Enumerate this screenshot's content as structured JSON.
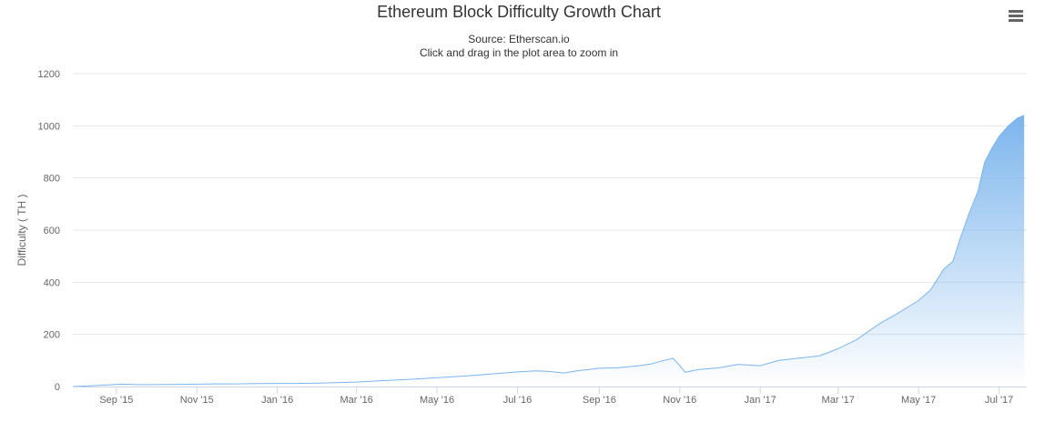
{
  "header": {
    "title": "Ethereum Block Difficulty Growth Chart",
    "subtitle_source": "Source: Etherscan.io",
    "subtitle_hint": "Click and drag in the plot area to zoom in",
    "menu_icon": "hamburger-menu-icon"
  },
  "chart_data": {
    "type": "area",
    "title": "Ethereum Block Difficulty Growth Chart",
    "subtitle": "Source: Etherscan.io",
    "xlabel": "",
    "ylabel": "Difficulty ( TH )",
    "ylim": [
      0,
      1200
    ],
    "yticks": [
      0,
      200,
      400,
      600,
      800,
      1000,
      1200
    ],
    "xlim": [
      "2015-07-30",
      "2017-07-22"
    ],
    "xticks": [
      {
        "date": "2015-09-01",
        "label": "Sep '15"
      },
      {
        "date": "2015-11-01",
        "label": "Nov '15"
      },
      {
        "date": "2016-01-01",
        "label": "Jan '16"
      },
      {
        "date": "2016-03-01",
        "label": "Mar '16"
      },
      {
        "date": "2016-05-01",
        "label": "May '16"
      },
      {
        "date": "2016-07-01",
        "label": "Jul '16"
      },
      {
        "date": "2016-09-01",
        "label": "Sep '16"
      },
      {
        "date": "2016-11-01",
        "label": "Nov '16"
      },
      {
        "date": "2017-01-01",
        "label": "Jan '17"
      },
      {
        "date": "2017-03-01",
        "label": "Mar '17"
      },
      {
        "date": "2017-05-01",
        "label": "May '17"
      },
      {
        "date": "2017-07-01",
        "label": "Jul '17"
      }
    ],
    "grid": true,
    "legend": "none",
    "series": [
      {
        "color": "#7cb5ec",
        "points": [
          [
            "2015-07-30",
            0.1
          ],
          [
            "2015-08-10",
            2
          ],
          [
            "2015-08-25",
            6
          ],
          [
            "2015-09-05",
            9
          ],
          [
            "2015-09-20",
            7
          ],
          [
            "2015-10-05",
            8
          ],
          [
            "2015-10-20",
            8.5
          ],
          [
            "2015-11-01",
            9
          ],
          [
            "2015-11-15",
            10
          ],
          [
            "2015-12-01",
            10
          ],
          [
            "2015-12-15",
            11
          ],
          [
            "2016-01-01",
            12
          ],
          [
            "2016-01-15",
            12
          ],
          [
            "2016-02-01",
            13
          ],
          [
            "2016-02-15",
            15
          ],
          [
            "2016-03-01",
            17
          ],
          [
            "2016-03-15",
            21
          ],
          [
            "2016-04-01",
            25
          ],
          [
            "2016-04-15",
            29
          ],
          [
            "2016-05-01",
            34
          ],
          [
            "2016-05-15",
            38
          ],
          [
            "2016-06-01",
            44
          ],
          [
            "2016-06-15",
            50
          ],
          [
            "2016-07-01",
            56
          ],
          [
            "2016-07-15",
            60
          ],
          [
            "2016-07-25",
            58
          ],
          [
            "2016-08-05",
            52
          ],
          [
            "2016-08-15",
            60
          ],
          [
            "2016-09-01",
            70
          ],
          [
            "2016-09-15",
            72
          ],
          [
            "2016-10-01",
            80
          ],
          [
            "2016-10-10",
            86
          ],
          [
            "2016-10-20",
            100
          ],
          [
            "2016-10-27",
            108
          ],
          [
            "2016-11-01",
            80
          ],
          [
            "2016-11-05",
            55
          ],
          [
            "2016-11-15",
            65
          ],
          [
            "2016-12-01",
            72
          ],
          [
            "2016-12-15",
            85
          ],
          [
            "2017-01-01",
            80
          ],
          [
            "2017-01-15",
            100
          ],
          [
            "2017-02-01",
            110
          ],
          [
            "2017-02-15",
            118
          ],
          [
            "2017-03-01",
            145
          ],
          [
            "2017-03-15",
            180
          ],
          [
            "2017-04-01",
            240
          ],
          [
            "2017-04-15",
            280
          ],
          [
            "2017-05-01",
            330
          ],
          [
            "2017-05-10",
            370
          ],
          [
            "2017-05-20",
            450
          ],
          [
            "2017-05-27",
            480
          ],
          [
            "2017-06-01",
            560
          ],
          [
            "2017-06-08",
            660
          ],
          [
            "2017-06-15",
            750
          ],
          [
            "2017-06-20",
            860
          ],
          [
            "2017-06-25",
            910
          ],
          [
            "2017-07-01",
            960
          ],
          [
            "2017-07-08",
            1000
          ],
          [
            "2017-07-15",
            1030
          ],
          [
            "2017-07-20",
            1040
          ]
        ]
      }
    ]
  }
}
